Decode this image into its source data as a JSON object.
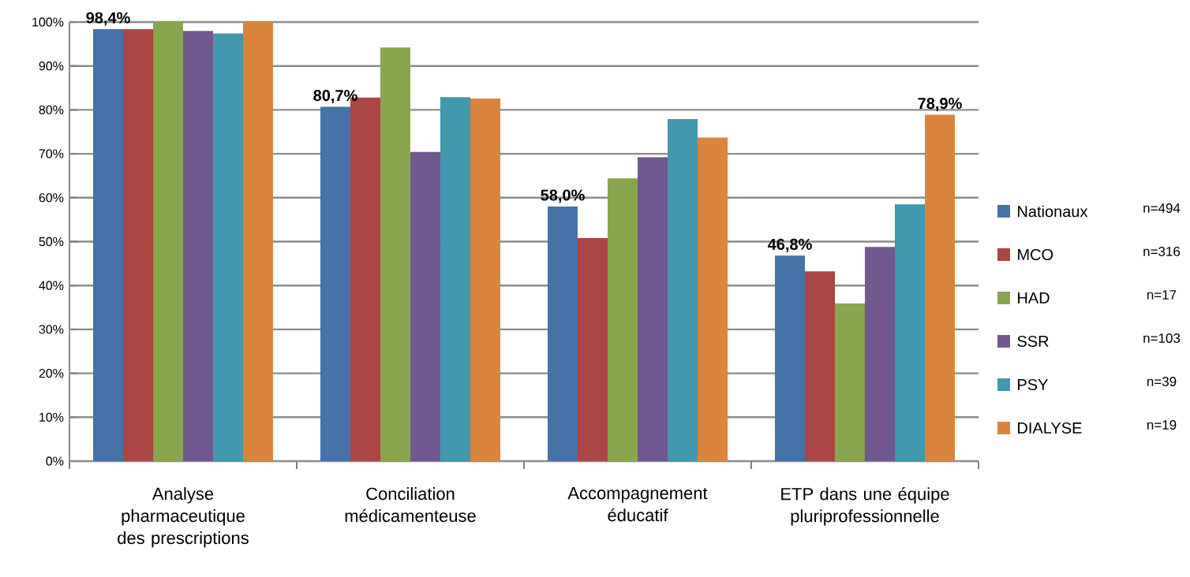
{
  "chart_data": {
    "type": "bar",
    "categories": [
      "Analyse pharmaceutique des prescriptions",
      "Conciliation médicamenteuse",
      "Accompagnement éducatif",
      "ETP dans une équipe pluriprofessionnelle"
    ],
    "series": [
      {
        "name": "Nationaux",
        "color": "#4572a7",
        "values": [
          98.4,
          80.7,
          58.0,
          46.8
        ],
        "value_labels": [
          "98,4%",
          "80,7%",
          "58,0%",
          "46,8%"
        ]
      },
      {
        "name": "MCO",
        "color": "#aa4643",
        "values": [
          98.4,
          82.8,
          50.8,
          43.2
        ]
      },
      {
        "name": "HAD",
        "color": "#89a54e",
        "values": [
          100,
          94.2,
          64.4,
          35.9
        ]
      },
      {
        "name": "SSR",
        "color": "#71588f",
        "values": [
          98.0,
          70.4,
          69.2,
          48.8
        ]
      },
      {
        "name": "PSY",
        "color": "#4198af",
        "values": [
          97.4,
          82.9,
          77.9,
          58.5
        ]
      },
      {
        "name": "DIALYSE",
        "color": "#db843d",
        "values": [
          100,
          82.6,
          73.7,
          78.9
        ],
        "value_labels": [
          null,
          null,
          null,
          "78,9%"
        ]
      }
    ],
    "ylim": [
      0,
      100
    ],
    "yticks": [
      {
        "value": 0,
        "label": "0%"
      },
      {
        "value": 10,
        "label": "10%"
      },
      {
        "value": 20,
        "label": "20%"
      },
      {
        "value": 30,
        "label": "30%"
      },
      {
        "value": 40,
        "label": "40%"
      },
      {
        "value": 50,
        "label": "50%"
      },
      {
        "value": 60,
        "label": "60%"
      },
      {
        "value": 70,
        "label": "70%"
      },
      {
        "value": 80,
        "label": "80%"
      },
      {
        "value": 90,
        "label": "90%"
      },
      {
        "value": 100,
        "label": "100%"
      }
    ],
    "grid": "y",
    "legend": "right",
    "annotations": [
      "n=494",
      "n=316",
      "n=17",
      "n=103",
      "n=39",
      "n=19"
    ]
  }
}
